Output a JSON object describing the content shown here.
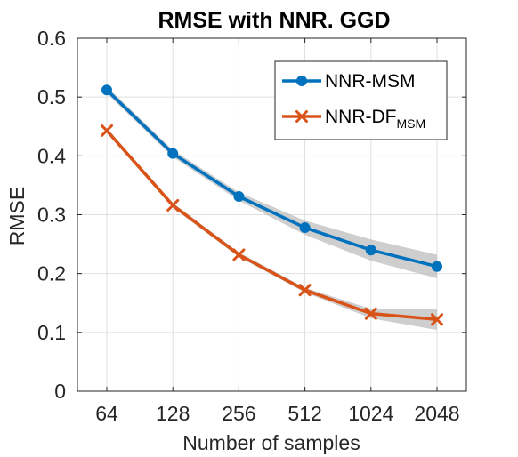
{
  "chart_data": {
    "type": "line",
    "title": "RMSE with NNR. GGD",
    "xlabel": "Number of samples",
    "ylabel": "RMSE",
    "categories": [
      "64",
      "128",
      "256",
      "512",
      "1024",
      "2048"
    ],
    "ylim": [
      0,
      0.6
    ],
    "yticks": [
      "0",
      "0.1",
      "0.2",
      "0.3",
      "0.4",
      "0.5",
      "0.6"
    ],
    "grid": true,
    "legend_position": "top-right",
    "series": [
      {
        "name": "NNR-MSM",
        "name_main": "NNR-MSM",
        "name_sub": "",
        "color": "#0072BD",
        "marker": "circle",
        "values": [
          0.512,
          0.404,
          0.331,
          0.278,
          0.24,
          0.212
        ],
        "band_upper": [
          0.518,
          0.41,
          0.338,
          0.29,
          0.258,
          0.232
        ],
        "band_lower": [
          0.506,
          0.398,
          0.324,
          0.266,
          0.222,
          0.192
        ]
      },
      {
        "name": "NNR-DF MSM",
        "name_main": "NNR-DF",
        "name_sub": "MSM",
        "color": "#D95319",
        "marker": "x",
        "values": [
          0.443,
          0.316,
          0.232,
          0.172,
          0.132,
          0.122
        ],
        "band_upper": [
          0.447,
          0.32,
          0.236,
          0.176,
          0.14,
          0.14
        ],
        "band_lower": [
          0.439,
          0.312,
          0.228,
          0.168,
          0.124,
          0.104
        ]
      }
    ],
    "band_color": "#bdbdbd"
  }
}
